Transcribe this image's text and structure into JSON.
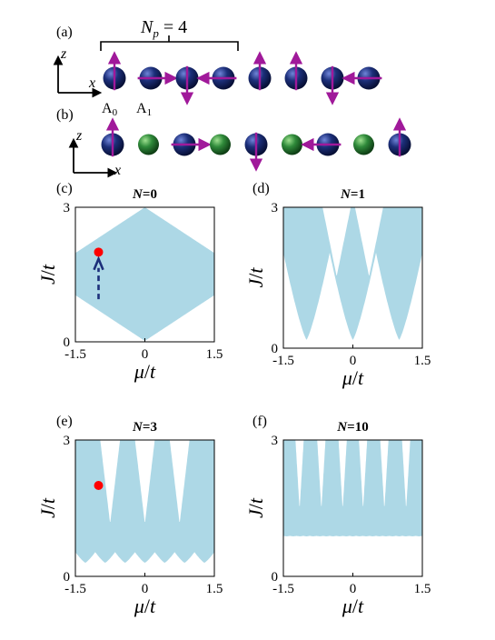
{
  "figure": {
    "panel_labels": [
      "(a)",
      "(b)",
      "(c)",
      "(d)",
      "(e)",
      "(f)"
    ],
    "top": {
      "np_prefix": "N",
      "np_subscript": "p",
      "np_suffix": " = 4",
      "axis_z": "z",
      "axis_x": "x",
      "site_a0": "A",
      "site_a0_sub": "0",
      "site_a1": "A",
      "site_a1_sub": "1"
    },
    "colors": {
      "band": "#add8e6",
      "arrow": "#a0199a",
      "atom_a": "#1c2f7a",
      "atom_b": "#2f8a3a",
      "marker": "#ff0000",
      "dashed_arrow": "#1c2f7a"
    },
    "chain_a_spins": [
      "up",
      "right",
      "down",
      "left",
      "up",
      "up",
      "down",
      "left"
    ],
    "chain_b": [
      {
        "type": "A",
        "spin": "up"
      },
      {
        "type": "B"
      },
      {
        "type": "A",
        "spin": "right"
      },
      {
        "type": "B"
      },
      {
        "type": "A",
        "spin": "down"
      },
      {
        "type": "B"
      },
      {
        "type": "A",
        "spin": "left"
      },
      {
        "type": "B"
      },
      {
        "type": "A",
        "spin": "up"
      }
    ],
    "axis_symbols": {
      "y_main": "J",
      "y_sep": "/",
      "y_t": "t",
      "x_main": "μ",
      "x_sep": "/",
      "x_t": "t"
    }
  },
  "chart_data": [
    {
      "type": "area",
      "panel": "(c)",
      "title_prefix": "N",
      "title_suffix": "=0",
      "xlim": [
        -1.5,
        1.5
      ],
      "ylim": [
        0,
        3
      ],
      "xticks": [
        "-1.5",
        "0",
        "1.5"
      ],
      "yticks": [
        "0",
        "3"
      ],
      "N": 0,
      "marker": {
        "mu": -1.0,
        "J": 2.0
      },
      "dashed_arrow": {
        "mu": -1.0,
        "from_J": 0.95,
        "to_J": 1.85
      }
    },
    {
      "type": "area",
      "panel": "(d)",
      "title_prefix": "N",
      "title_suffix": "=1",
      "xlim": [
        -1.5,
        1.5
      ],
      "ylim": [
        0,
        3
      ],
      "xticks": [
        "-1.5",
        "0",
        "1.5"
      ],
      "yticks": [
        "0",
        "3"
      ],
      "N": 1
    },
    {
      "type": "area",
      "panel": "(e)",
      "title_prefix": "N",
      "title_suffix": "=3",
      "xlim": [
        -1.5,
        1.5
      ],
      "ylim": [
        0,
        3
      ],
      "xticks": [
        "-1.5",
        "0",
        "1.5"
      ],
      "yticks": [
        "0",
        "3"
      ],
      "N": 3,
      "marker": {
        "mu": -1.0,
        "J": 2.0
      }
    },
    {
      "type": "area",
      "panel": "(f)",
      "title_prefix": "N",
      "title_suffix": "=10",
      "xlim": [
        -1.5,
        1.5
      ],
      "ylim": [
        0,
        3
      ],
      "xticks": [
        "-1.5",
        "0",
        "1.5"
      ],
      "yticks": [
        "0",
        "3"
      ],
      "N": 10
    }
  ]
}
